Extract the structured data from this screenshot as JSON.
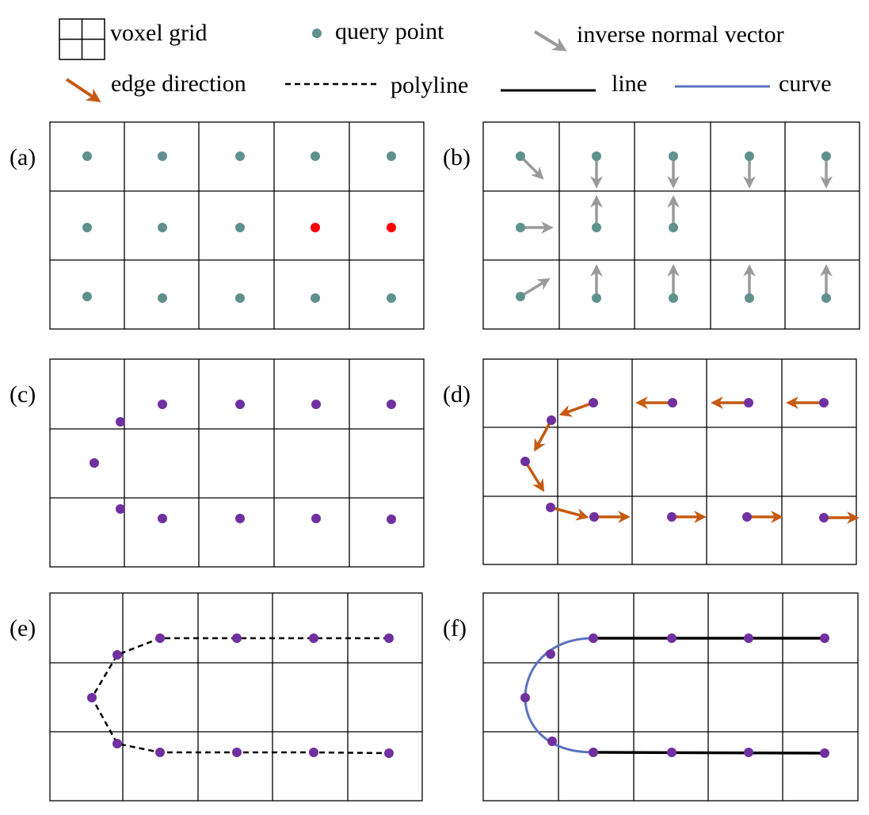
{
  "legend": {
    "voxel_grid": "voxel grid",
    "query_point": "query point",
    "inverse_normal": "inverse normal vector",
    "edge_direction": "edge direction",
    "polyline": "polyline",
    "line": "line",
    "curve": "curve"
  },
  "colors": {
    "query_point": "#5f918d",
    "highlight_point": "#ff0000",
    "edge_point": "#7030a0",
    "normal_arrow": "#9a9a9a",
    "edge_arrow": "#c55a11",
    "curve": "#5b73c0",
    "line": "#000000"
  },
  "panels": {
    "a": {
      "label": "(a)"
    },
    "b": {
      "label": "(b)"
    },
    "c": {
      "label": "(c)"
    },
    "d": {
      "label": "(d)"
    },
    "e": {
      "label": "(e)"
    },
    "f": {
      "label": "(f)"
    }
  },
  "grid": {
    "rows": 3,
    "cols": 5
  }
}
